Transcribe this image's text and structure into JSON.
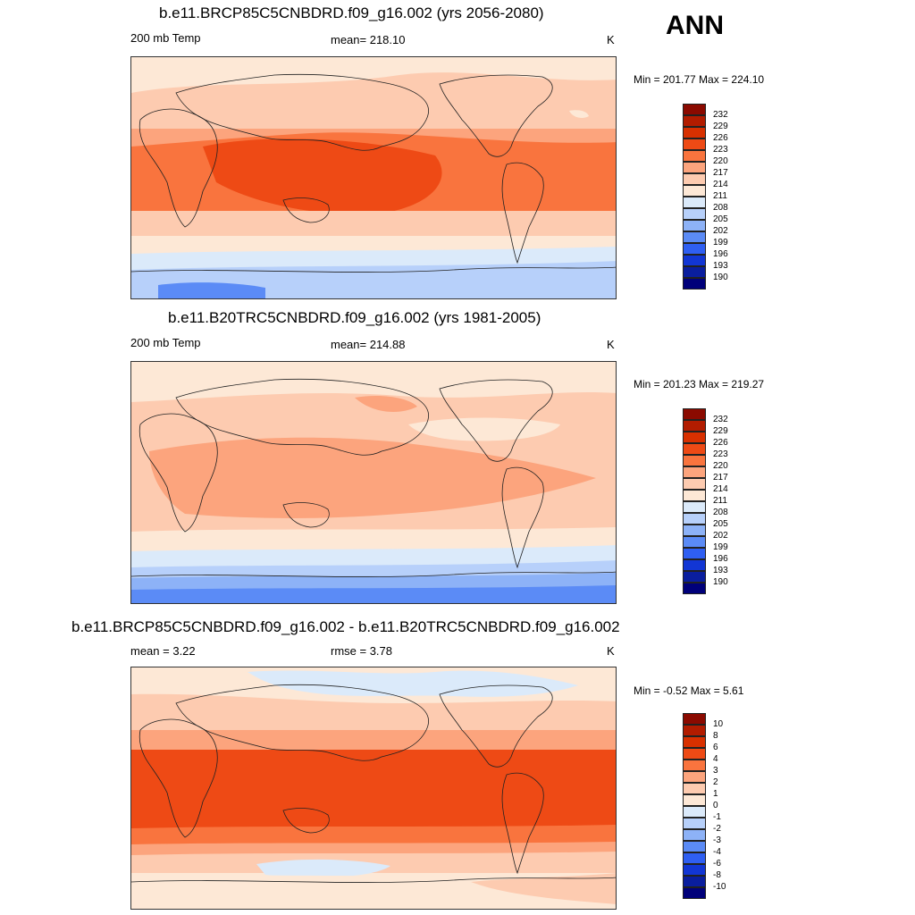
{
  "season": "ANN",
  "panels": [
    {
      "id": "future",
      "title": "b.e11.BRCP85C5CNBDRD.f09_g16.002 (yrs 2056-2080)",
      "left_label": "200 mb Temp",
      "center_label": "mean= 218.10",
      "units": "K",
      "minmax": "Min = 201.77 Max = 224.10",
      "levels": [
        "232",
        "229",
        "226",
        "223",
        "220",
        "217",
        "214",
        "211",
        "208",
        "205",
        "202",
        "199",
        "196",
        "193",
        "190"
      ]
    },
    {
      "id": "control",
      "title": "b.e11.B20TRC5CNBDRD.f09_g16.002 (yrs 1981-2005)",
      "left_label": "200 mb Temp",
      "center_label": "mean= 214.88",
      "units": "K",
      "minmax": "Min = 201.23 Max = 219.27",
      "levels": [
        "232",
        "229",
        "226",
        "223",
        "220",
        "217",
        "214",
        "211",
        "208",
        "205",
        "202",
        "199",
        "196",
        "193",
        "190"
      ]
    },
    {
      "id": "difference",
      "title": "b.e11.BRCP85C5CNBDRD.f09_g16.002 - b.e11.B20TRC5CNBDRD.f09_g16.002",
      "left_label": "mean =   3.22",
      "center_label": "rmse =   3.78",
      "units": "K",
      "minmax": "Min =  -0.52 Max =   5.61",
      "levels": [
        "10",
        "8",
        "6",
        "4",
        "3",
        "2",
        "1",
        "0",
        "-1",
        "-2",
        "-3",
        "-4",
        "-6",
        "-8",
        "-10"
      ]
    }
  ],
  "colors": {
    "scale": [
      "#8b0a00",
      "#b21c00",
      "#d83000",
      "#ee4a15",
      "#f9743e",
      "#fca47d",
      "#fdcbb0",
      "#fde8d6",
      "#dbeafa",
      "#b7d0fa",
      "#8db2f7",
      "#5b8bf6",
      "#2f5ff2",
      "#1236d4",
      "#0a1e9e",
      "#00007a"
    ]
  }
}
